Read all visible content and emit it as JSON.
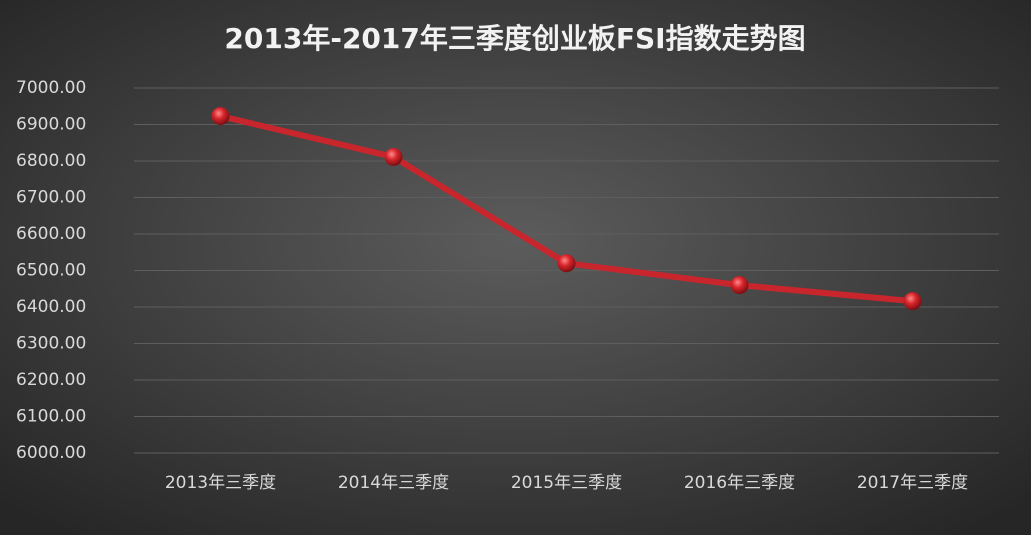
{
  "chart_data": {
    "type": "line",
    "title": "2013年-2017年三季度创业板FSI指数走势图",
    "categories": [
      "2013年三季度",
      "2014年三季度",
      "2015年三季度",
      "2016年三季度",
      "2017年三季度"
    ],
    "values": [
      6923,
      6811,
      6520,
      6460,
      6416
    ],
    "color": "#c8262c",
    "ylim": [
      6000,
      7000
    ],
    "yticks": [
      {
        "value": 6000,
        "label": "6000.00"
      },
      {
        "value": 6100,
        "label": "6100.00"
      },
      {
        "value": 6200,
        "label": "6200.00"
      },
      {
        "value": 6300,
        "label": "6300.00"
      },
      {
        "value": 6400,
        "label": "6400.00"
      },
      {
        "value": 6500,
        "label": "6500.00"
      },
      {
        "value": 6600,
        "label": "6600.00"
      },
      {
        "value": 6700,
        "label": "6700.00"
      },
      {
        "value": 6800,
        "label": "6800.00"
      },
      {
        "value": 6900,
        "label": "6900.00"
      },
      {
        "value": 7000,
        "label": "7000.00"
      }
    ],
    "grid": true
  }
}
